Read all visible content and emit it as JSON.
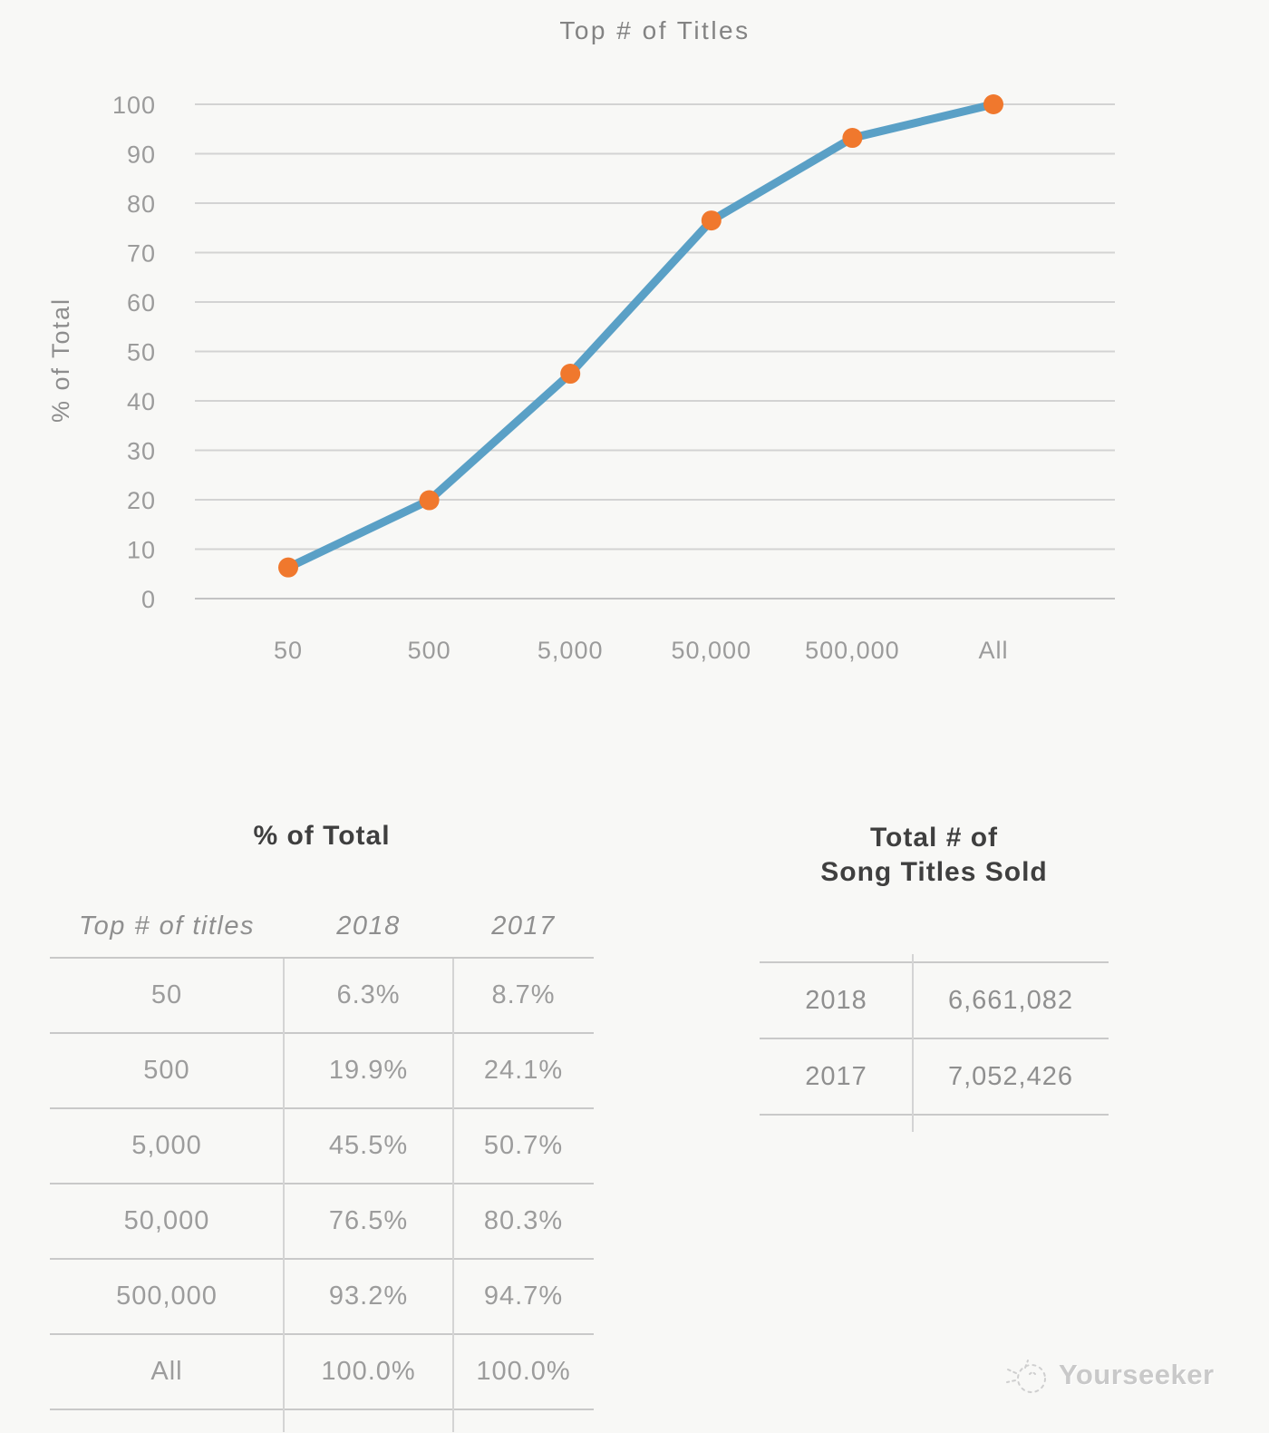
{
  "chart_data": {
    "type": "line",
    "title": "Top # of Titles",
    "xlabel": "",
    "ylabel": "% of Total",
    "categories": [
      "50",
      "500",
      "5,000",
      "50,000",
      "500,000",
      "All"
    ],
    "series": [
      {
        "name": "2018",
        "values": [
          6.3,
          19.9,
          45.5,
          76.5,
          93.2,
          100.0
        ]
      }
    ],
    "ylim": [
      0,
      100
    ],
    "ytick_step": 10,
    "grid": true,
    "legend": "none",
    "line_color": "#5AA0C6",
    "marker_color": "#F0782D"
  },
  "pct_table": {
    "title": "% of Total",
    "columns": [
      "Top # of titles",
      "2018",
      "2017"
    ],
    "rows": [
      [
        "50",
        "6.3%",
        "8.7%"
      ],
      [
        "500",
        "19.9%",
        "24.1%"
      ],
      [
        "5,000",
        "45.5%",
        "50.7%"
      ],
      [
        "50,000",
        "76.5%",
        "80.3%"
      ],
      [
        "500,000",
        "93.2%",
        "94.7%"
      ],
      [
        "All",
        "100.0%",
        "100.0%"
      ]
    ]
  },
  "totals_table": {
    "title_line1": "Total # of",
    "title_line2": "Song Titles Sold",
    "rows": [
      [
        "2018",
        "6,661,082"
      ],
      [
        "2017",
        "7,052,426"
      ]
    ]
  },
  "watermark": {
    "text": "Yourseeker"
  }
}
